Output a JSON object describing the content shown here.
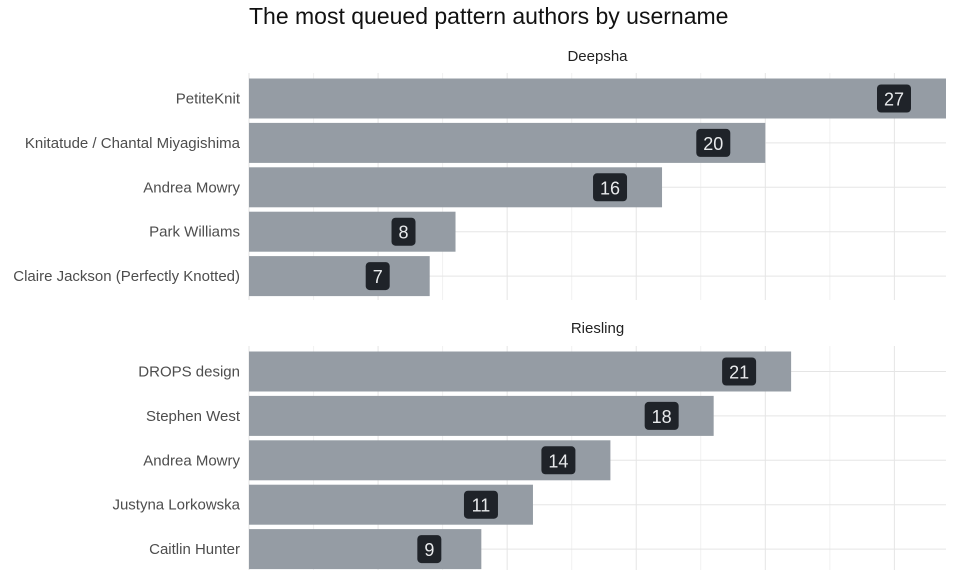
{
  "chart_data": {
    "type": "bar",
    "orientation": "horizontal",
    "title": "The most queued pattern authors by username",
    "xlabel": "",
    "ylabel": "",
    "xlim": [
      0,
      27
    ],
    "grid": true,
    "bar_color": "#959ca4",
    "label_color": "#1f2329",
    "panels": [
      {
        "name": "Deepsha",
        "categories": [
          "PetiteKnit",
          "Knitatude / Chantal Miyagishima",
          "Andrea Mowry",
          "Park Williams",
          "Claire Jackson (Perfectly Knotted)"
        ],
        "values": [
          27,
          20,
          16,
          8,
          7
        ]
      },
      {
        "name": "Riesling",
        "categories": [
          "DROPS design",
          "Stephen West",
          "Andrea Mowry",
          "Justyna Lorkowska",
          "Caitlin Hunter"
        ],
        "values": [
          21,
          18,
          14,
          11,
          9
        ]
      }
    ]
  }
}
